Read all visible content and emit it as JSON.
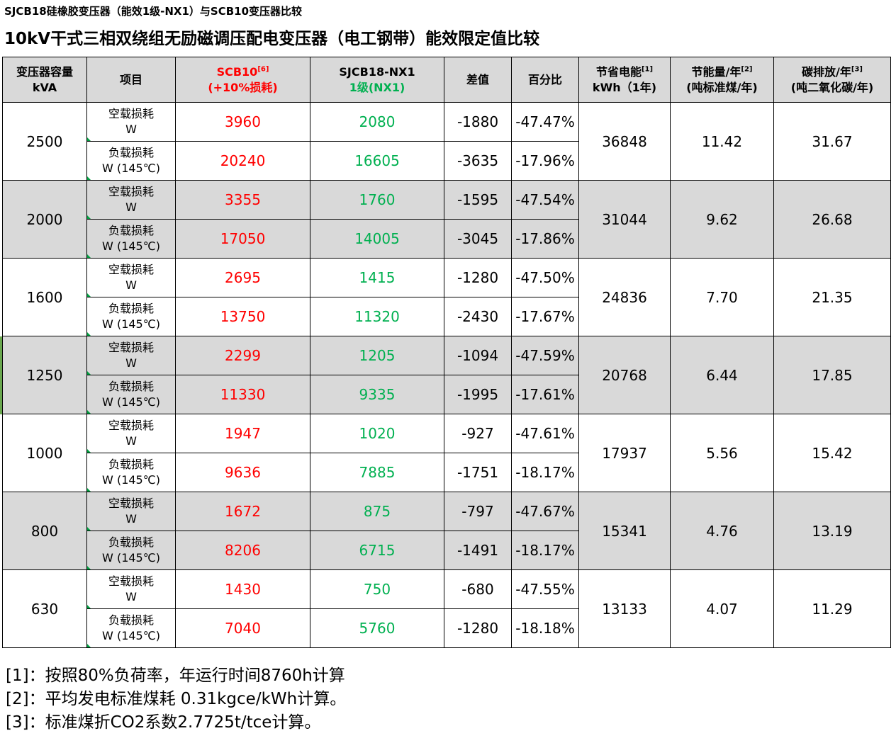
{
  "top_title": "SJCB18硅橡胶变压器（能效1级-NX1）与SCB10变压器比较",
  "main_title": "10kV干式三相双绕组无励磁调压配电变压器（电工钢带）能效限定值比较",
  "header": {
    "capacity": {
      "line1": "变压器容量",
      "line2": "kVA"
    },
    "item": "项目",
    "scb10": {
      "line1": "SCB10",
      "sup": "[6]",
      "line2": "(+10%损耗)"
    },
    "sjcb18": {
      "line1": "SJCB18-NX1",
      "line2": "1级(NX1)"
    },
    "diff": "差值",
    "percent": "百分比",
    "energy": {
      "line1": "节省电能",
      "sup": "[1]",
      "line2": "kWh（1年)"
    },
    "coal": {
      "line1": "节能量/年",
      "sup": "[2]",
      "line2": "(吨标准煤/年)"
    },
    "carbon": {
      "line1": "碳排放/年",
      "sup": "[3]",
      "line2": "(吨二氧化碳/年)"
    }
  },
  "labels": {
    "noload_line1": "空载损耗",
    "noload_line2": "W",
    "load_line1": "负载损耗",
    "load_line2": "W (145℃)"
  },
  "rows": [
    {
      "capacity": "2500",
      "noload": {
        "scb10": "3960",
        "sjcb18": "2080",
        "diff": "-1880",
        "pct": "-47.47%"
      },
      "load": {
        "scb10": "20240",
        "sjcb18": "16605",
        "diff": "-3635",
        "pct": "-17.96%"
      },
      "energy": "36848",
      "coal": "11.42",
      "carbon": "31.67",
      "shaded": false
    },
    {
      "capacity": "2000",
      "noload": {
        "scb10": "3355",
        "sjcb18": "1760",
        "diff": "-1595",
        "pct": "-47.54%"
      },
      "load": {
        "scb10": "17050",
        "sjcb18": "14005",
        "diff": "-3045",
        "pct": "-17.86%"
      },
      "energy": "31044",
      "coal": "9.62",
      "carbon": "26.68",
      "shaded": true
    },
    {
      "capacity": "1600",
      "noload": {
        "scb10": "2695",
        "sjcb18": "1415",
        "diff": "-1280",
        "pct": "-47.50%"
      },
      "load": {
        "scb10": "13750",
        "sjcb18": "11320",
        "diff": "-2430",
        "pct": "-17.67%"
      },
      "energy": "24836",
      "coal": "7.70",
      "carbon": "21.35",
      "shaded": false
    },
    {
      "capacity": "1250",
      "noload": {
        "scb10": "2299",
        "sjcb18": "1205",
        "diff": "-1094",
        "pct": "-47.59%"
      },
      "load": {
        "scb10": "11330",
        "sjcb18": "9335",
        "diff": "-1995",
        "pct": "-17.61%"
      },
      "energy": "20768",
      "coal": "6.44",
      "carbon": "17.85",
      "shaded": true
    },
    {
      "capacity": "1000",
      "noload": {
        "scb10": "1947",
        "sjcb18": "1020",
        "diff": "-927",
        "pct": "-47.61%"
      },
      "load": {
        "scb10": "9636",
        "sjcb18": "7885",
        "diff": "-1751",
        "pct": "-18.17%"
      },
      "energy": "17937",
      "coal": "5.56",
      "carbon": "15.42",
      "shaded": false
    },
    {
      "capacity": "800",
      "noload": {
        "scb10": "1672",
        "sjcb18": "875",
        "diff": "-797",
        "pct": "-47.67%"
      },
      "load": {
        "scb10": "8206",
        "sjcb18": "6715",
        "diff": "-1491",
        "pct": "-18.17%"
      },
      "energy": "15341",
      "coal": "4.76",
      "carbon": "13.19",
      "shaded": true
    },
    {
      "capacity": "630",
      "noload": {
        "scb10": "1430",
        "sjcb18": "750",
        "diff": "-680",
        "pct": "-47.55%"
      },
      "load": {
        "scb10": "7040",
        "sjcb18": "5760",
        "diff": "-1280",
        "pct": "-18.18%"
      },
      "energy": "13133",
      "coal": "4.07",
      "carbon": "11.29",
      "shaded": false
    }
  ],
  "notes": [
    "[1]：按照80%负荷率，年运行时间8760h计算",
    "[2]：平均发电标准煤耗 0.31kgce/kWh计算。",
    "[3]：标准煤折CO2系数2.7725t/tce计算。"
  ],
  "colors": {
    "scb10": "#ff0000",
    "sjcb18": "#00b050",
    "shade": "#d9d9d9"
  }
}
